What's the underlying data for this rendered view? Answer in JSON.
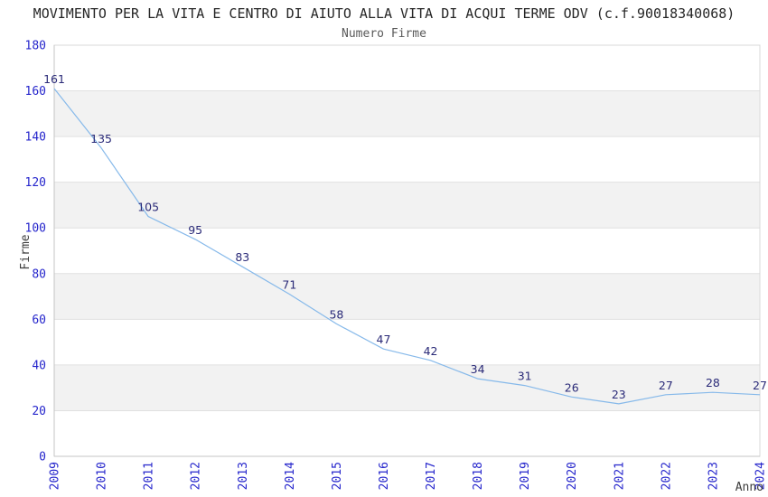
{
  "header": {
    "title": "MOVIMENTO PER LA VITA E CENTRO DI AIUTO ALLA VITA DI ACQUI TERME ODV (c.f.90018340068)",
    "subtitle": "Numero Firme"
  },
  "chart_data": {
    "type": "line",
    "title": "MOVIMENTO PER LA VITA E CENTRO DI AIUTO ALLA VITA DI ACQUI TERME ODV (c.f.90018340068)",
    "subtitle": "Numero Firme",
    "xlabel": "Anno",
    "ylabel": "Firme",
    "x": [
      2009,
      2010,
      2011,
      2012,
      2013,
      2014,
      2015,
      2016,
      2017,
      2018,
      2019,
      2020,
      2021,
      2022,
      2023,
      2024
    ],
    "series": [
      {
        "name": "Numero Firme",
        "values": [
          161,
          135,
          105,
          95,
          83,
          71,
          58,
          47,
          42,
          34,
          31,
          26,
          23,
          27,
          28,
          27
        ]
      }
    ],
    "ylim": [
      0,
      180
    ],
    "ytick_step": 20,
    "yticks": [
      0,
      20,
      40,
      60,
      80,
      100,
      120,
      140,
      160,
      180
    ],
    "grid": "horizontal-bands-alternating",
    "legend": "none",
    "data_labels_visible": true,
    "x_tick_rotation_deg": -90,
    "colors": {
      "line": "#86b9ea",
      "tick_label": "#2626cc",
      "data_label": "#2a2a78",
      "band": "#f2f2f2",
      "grid": "#e0e0e0",
      "border": "#d9d9d9",
      "axis": "#c4c4c4",
      "title": "#262626",
      "subtitle": "#595959",
      "axis_title": "#3d3d3d",
      "background": "#ffffff"
    }
  }
}
